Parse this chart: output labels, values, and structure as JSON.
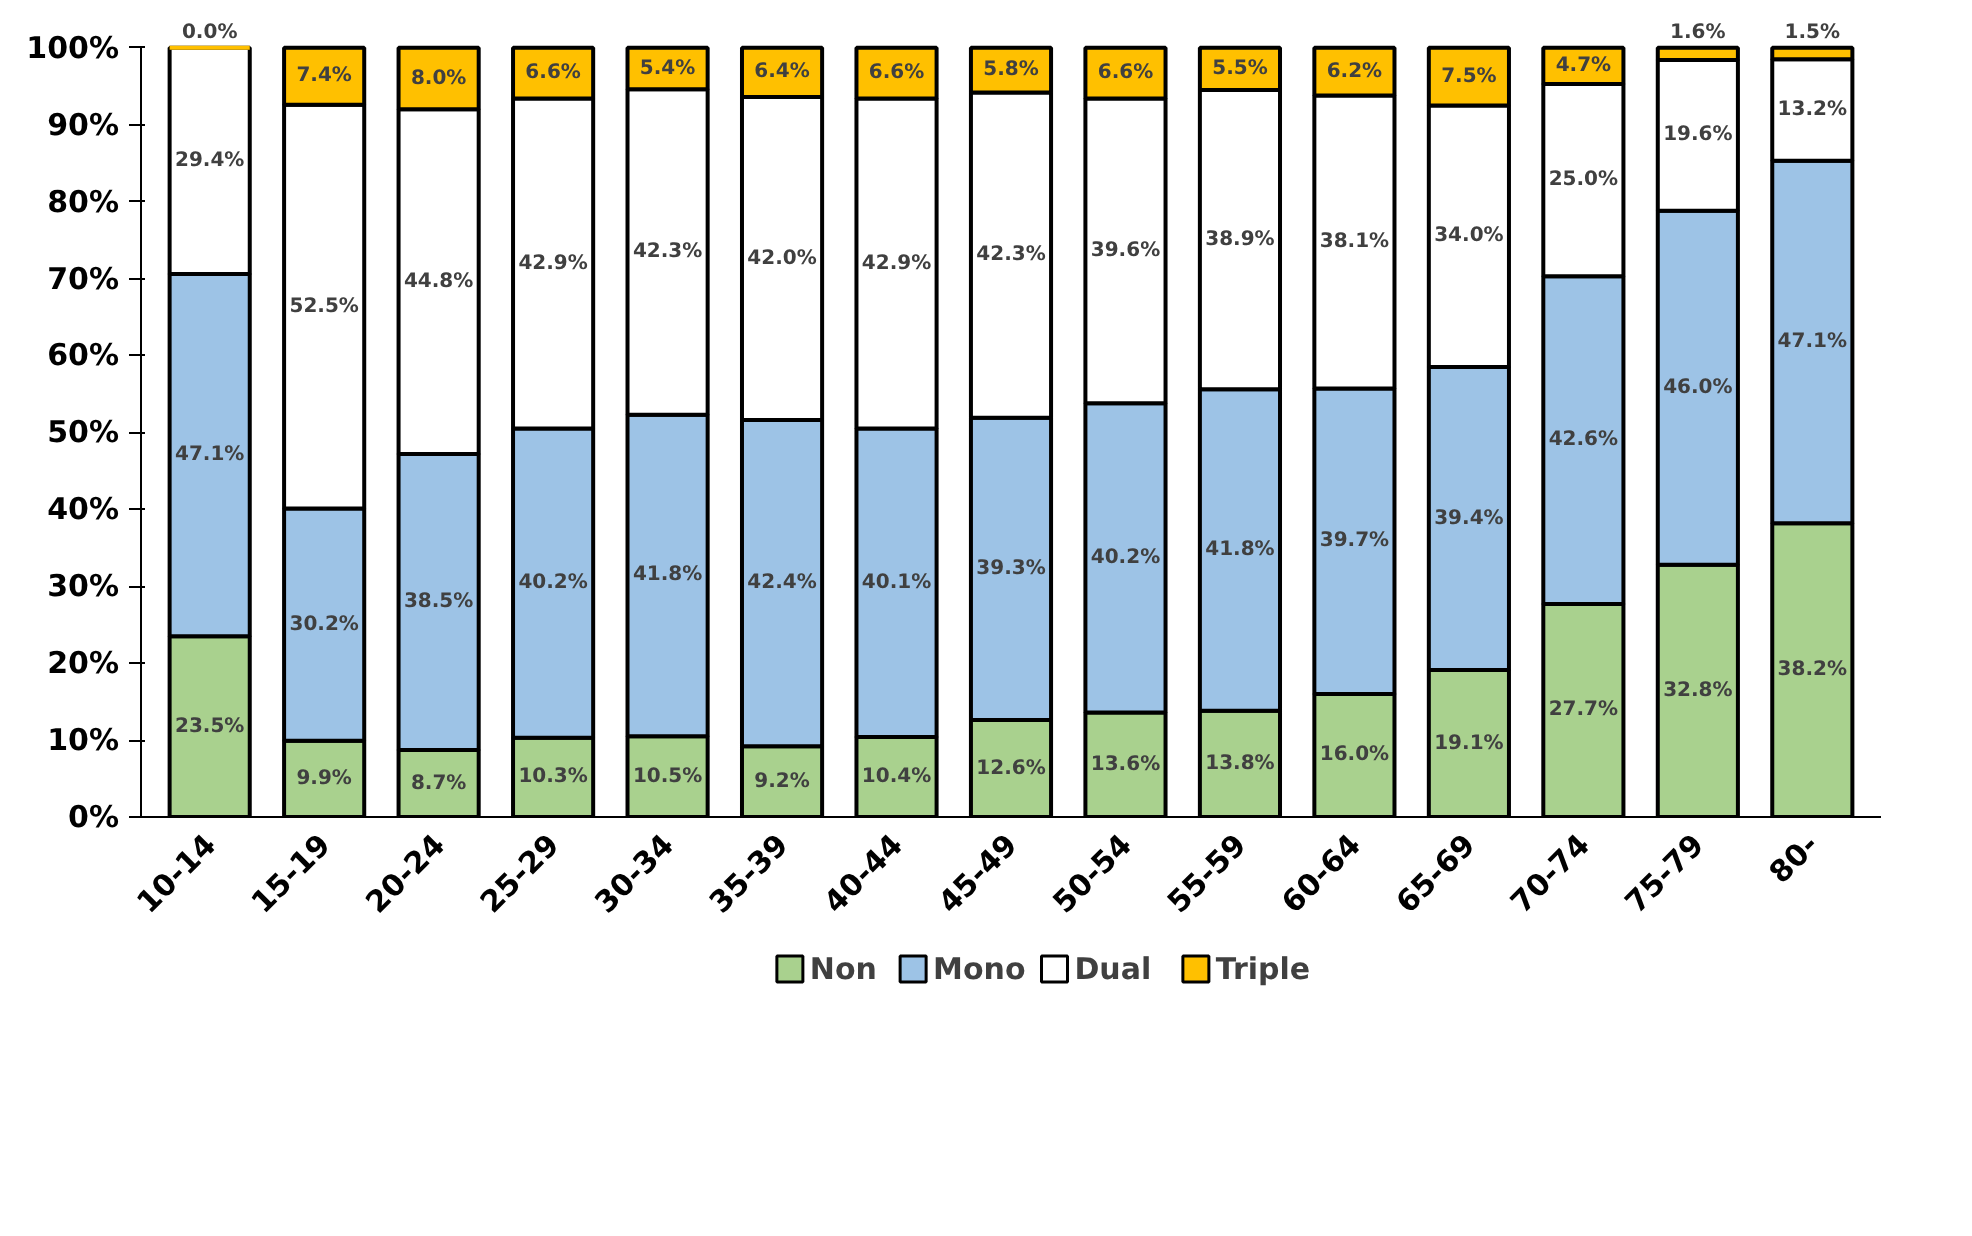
{
  "chart_data": {
    "type": "bar",
    "stacked": true,
    "categories": [
      "10-14",
      "15-19",
      "20-24",
      "25-29",
      "30-34",
      "35-39",
      "40-44",
      "45-49",
      "50-54",
      "55-59",
      "60-64",
      "65-69",
      "70-74",
      "75-79",
      "80-"
    ],
    "series": [
      {
        "name": "Non",
        "color": "#a9d18e",
        "values": [
          23.5,
          9.9,
          8.7,
          10.3,
          10.5,
          9.2,
          10.4,
          12.6,
          13.6,
          13.8,
          16.0,
          19.1,
          27.7,
          32.8,
          38.2
        ],
        "value_labels": [
          "23.5%",
          "9.9%",
          "8.7%",
          "10.3%",
          "10.5%",
          "9.2%",
          "10.4%",
          "12.6%",
          "13.6%",
          "13.8%",
          "16.0%",
          "19.1%",
          "27.7%",
          "32.8%",
          "38.2%"
        ]
      },
      {
        "name": "Mono",
        "color": "#9dc3e6",
        "values": [
          47.1,
          30.2,
          38.5,
          40.2,
          41.8,
          42.4,
          40.1,
          39.3,
          40.2,
          41.8,
          39.7,
          39.4,
          42.6,
          46.0,
          47.1
        ],
        "value_labels": [
          "47.1%",
          "30.2%",
          "38.5%",
          "40.2%",
          "41.8%",
          "42.4%",
          "40.1%",
          "39.3%",
          "40.2%",
          "41.8%",
          "39.7%",
          "39.4%",
          "42.6%",
          "46.0%",
          "47.1%"
        ]
      },
      {
        "name": "Dual",
        "color": "#ffffff",
        "values": [
          29.4,
          52.5,
          44.8,
          42.9,
          42.3,
          42.0,
          42.9,
          42.3,
          39.6,
          38.9,
          38.1,
          34.0,
          25.0,
          19.6,
          13.2
        ],
        "value_labels": [
          "29.4%",
          "52.5%",
          "44.8%",
          "42.9%",
          "42.3%",
          "42.0%",
          "42.9%",
          "42.3%",
          "39.6%",
          "38.9%",
          "38.1%",
          "34.0%",
          "25.0%",
          "19.6%",
          "13.2%"
        ]
      },
      {
        "name": "Triple",
        "color": "#ffc000",
        "values": [
          0.0,
          7.4,
          8.0,
          6.6,
          5.4,
          6.4,
          6.6,
          5.8,
          6.6,
          5.5,
          6.2,
          7.5,
          4.7,
          1.6,
          1.5
        ],
        "value_labels": [
          "0.0%",
          "7.4%",
          "8.0%",
          "6.6%",
          "5.4%",
          "6.4%",
          "6.6%",
          "5.8%",
          "6.6%",
          "5.5%",
          "6.2%",
          "7.5%",
          "4.7%",
          "1.6%",
          "1.5%"
        ]
      }
    ],
    "ylim": [
      0,
      100
    ],
    "yticks": [
      {
        "value": 0,
        "label": "0%"
      },
      {
        "value": 10,
        "label": "10%"
      },
      {
        "value": 20,
        "label": "20%"
      },
      {
        "value": 30,
        "label": "30%"
      },
      {
        "value": 40,
        "label": "40%"
      },
      {
        "value": 50,
        "label": "50%"
      },
      {
        "value": 60,
        "label": "60%"
      },
      {
        "value": 70,
        "label": "70%"
      },
      {
        "value": 80,
        "label": "80%"
      },
      {
        "value": 90,
        "label": "90%"
      },
      {
        "value": 100,
        "label": "100%"
      }
    ],
    "grid": false,
    "legend": "bottom",
    "marker": "square"
  }
}
